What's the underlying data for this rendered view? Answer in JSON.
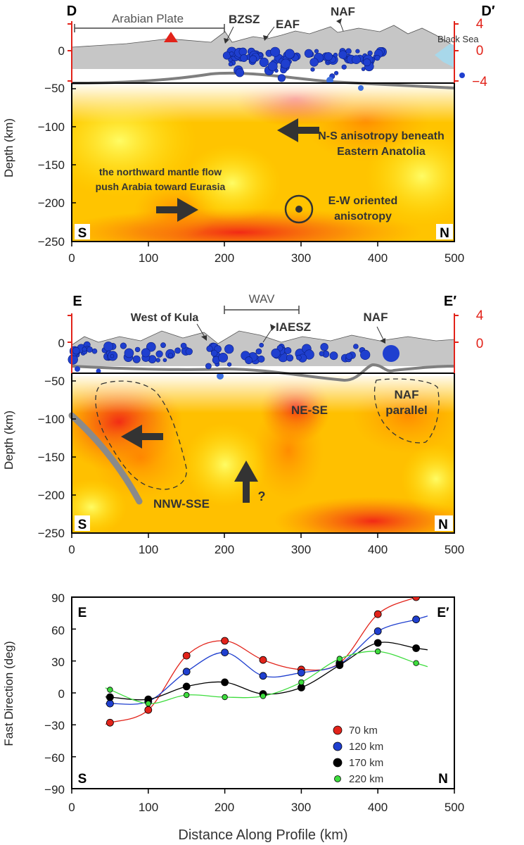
{
  "colors": {
    "blue_dot": "#1f3fcf",
    "topo_fill": "#c6c6c6",
    "moho": "#7f7f7f",
    "red_axis": "#e2231a",
    "sea": "#a8d8ea",
    "volcano": "#e2231a"
  },
  "panel1": {
    "title_left": "D",
    "title_right": "D′",
    "label_bl": "S",
    "label_br": "N",
    "ylabel": "Depth (km)",
    "xticks": [
      "0",
      "100",
      "200",
      "300",
      "400",
      "500"
    ],
    "yticks": [
      "0",
      "−50",
      "−100",
      "−150",
      "−200",
      "−250"
    ],
    "elev_ticks": [
      "4",
      "0",
      "−4"
    ],
    "plate_label": "Arabian Plate",
    "bzsz": "BZSZ",
    "eaf": "EAF",
    "naf": "NAF",
    "black_sea": "Black Sea",
    "ann_ns_1": "N-S anisotropy beneath",
    "ann_ns_2": "Eastern Anatolia",
    "ann_flow_1": "the northward mantle flow",
    "ann_flow_2": "push Arabia toward  Eurasia",
    "ann_ew_1": "E-W oriented",
    "ann_ew_2": "anisotropy"
  },
  "panel2": {
    "title_left": "E",
    "title_right": "E′",
    "label_bl": "S",
    "label_br": "N",
    "ylabel": "Depth (km)",
    "xticks": [
      "0",
      "100",
      "200",
      "300",
      "400",
      "500"
    ],
    "yticks": [
      "0",
      "−50",
      "−100",
      "−150",
      "−200",
      "−250"
    ],
    "elev_ticks": [
      "4",
      "0"
    ],
    "wav": "WAV",
    "west_kula": "West of Kula",
    "iaesz": "IAESZ",
    "naf": "NAF",
    "nese": "NE-SE",
    "naf_par_1": "NAF",
    "naf_par_2": "parallel",
    "nnw": "NNW-SSE",
    "question": "?"
  },
  "panel3": {
    "title_left": "E",
    "title_right": "E′",
    "label_bl": "S",
    "label_br": "N",
    "ylabel": "Fast Direction (deg)",
    "xlabel": "Distance Along Profile (km)",
    "xticks": [
      "0",
      "100",
      "200",
      "300",
      "400",
      "500"
    ],
    "yticks": [
      "90",
      "60",
      "30",
      "0",
      "−30",
      "−60",
      "−90"
    ]
  },
  "chart_data": {
    "type": "line",
    "title": "",
    "xlabel": "Distance Along Profile (km)",
    "ylabel": "Fast Direction (deg)",
    "xlim": [
      0,
      500
    ],
    "ylim": [
      -90,
      90
    ],
    "x": [
      50,
      100,
      150,
      200,
      250,
      300,
      350,
      400,
      450
    ],
    "series": [
      {
        "name": "70 km",
        "color": "#e2231a",
        "values": [
          -28,
          -16,
          35,
          49,
          31,
          22,
          28,
          74,
          90
        ]
      },
      {
        "name": "120 km",
        "color": "#1f3fcf",
        "values": [
          -10,
          -8,
          20,
          38,
          16,
          19,
          27,
          58,
          69
        ]
      },
      {
        "name": "170 km",
        "color": "#000000",
        "values": [
          -4,
          -6,
          6,
          10,
          -1,
          5,
          26,
          47,
          42
        ]
      },
      {
        "name": "220 km",
        "color": "#3ddc3d",
        "values": [
          3,
          -10,
          -2,
          -4,
          -3,
          10,
          32,
          39,
          28
        ]
      }
    ],
    "legend_position": "bottom-right"
  }
}
